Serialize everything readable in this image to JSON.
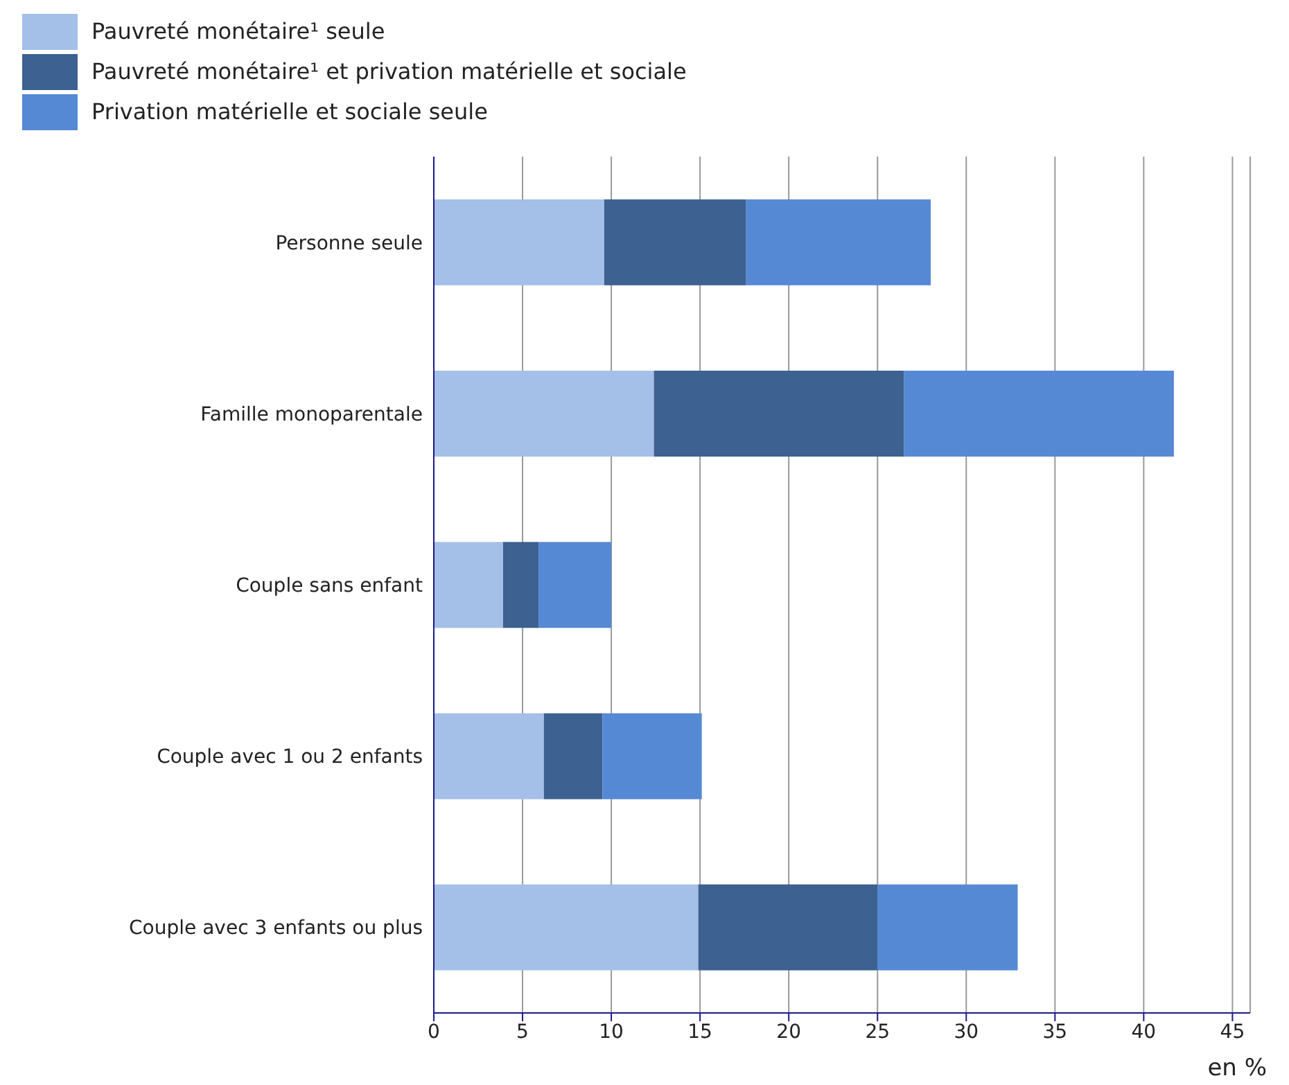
{
  "chart_data": {
    "type": "bar",
    "orientation": "horizontal",
    "stacked": true,
    "xlabel": "en %",
    "categories": [
      "Personne seule",
      "Famille monoparentale",
      "Couple sans enfant",
      "Couple avec 1 ou 2 enfants",
      "Couple avec 3 enfants ou plus"
    ],
    "series": [
      {
        "name": "Pauvreté monétaire¹ seule",
        "color": "#a4bfe8",
        "values": [
          9.6,
          12.4,
          3.9,
          6.2,
          14.9
        ]
      },
      {
        "name": "Pauvreté monétaire¹ et privation matérielle et sociale",
        "color": "#3d6190",
        "values": [
          8.0,
          14.1,
          2.0,
          3.3,
          10.1
        ]
      },
      {
        "name": "Privation matérielle et sociale seule",
        "color": "#5689d4",
        "values": [
          10.4,
          15.2,
          4.1,
          5.6,
          7.9
        ]
      }
    ],
    "xlim": [
      0,
      46
    ],
    "xticks": [
      0,
      5,
      10,
      15,
      20,
      25,
      30,
      35,
      40,
      45
    ],
    "grid": "x",
    "legend": "top left"
  }
}
